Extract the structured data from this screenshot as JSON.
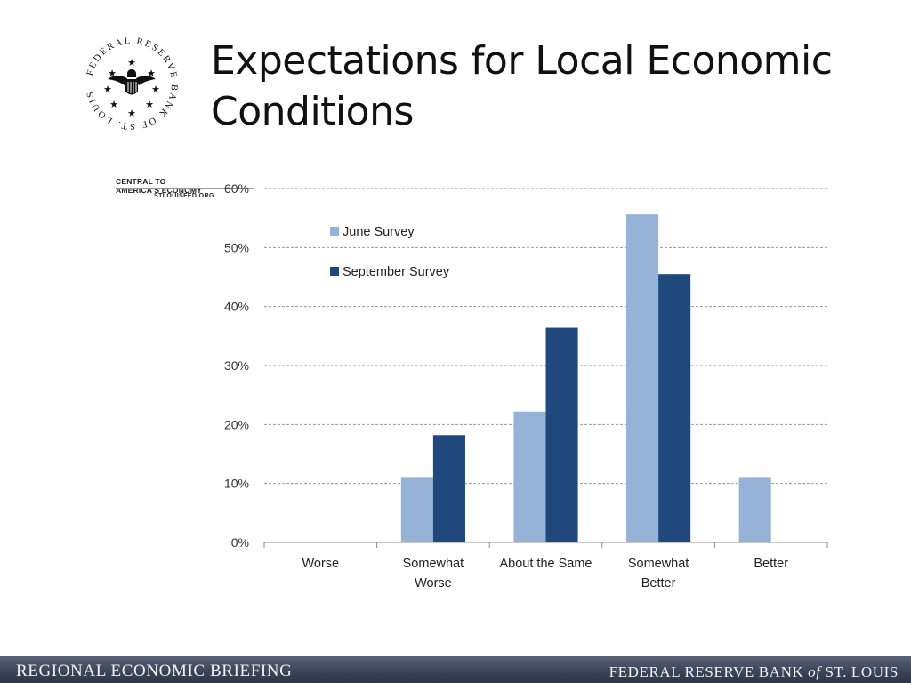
{
  "logo": {
    "ring_text": "FEDERAL RESERVE BANK OF ST. LOUIS",
    "tagline": "CENTRAL TO AMERICA'S ECONOMY",
    "website": "STLOUISFED.ORG"
  },
  "title": "Expectations for Local Economic Conditions",
  "footer": {
    "left": "REGIONAL ECONOMIC BRIEFING",
    "right_prefix": "FEDERAL RESERVE BANK ",
    "right_of": "of",
    "right_suffix": " ST. LOUIS"
  },
  "colors": {
    "june": "#95b3d7",
    "september": "#1f497d",
    "grid": "#999999"
  },
  "chart_data": {
    "type": "bar",
    "title": "",
    "xlabel": "",
    "ylabel": "",
    "categories": [
      "Worse",
      "Somewhat Worse",
      "About the Same",
      "Somewhat Better",
      "Better"
    ],
    "category_lines": [
      [
        "Worse"
      ],
      [
        "Somewhat",
        "Worse"
      ],
      [
        "About the Same"
      ],
      [
        "Somewhat",
        "Better"
      ],
      [
        "Better"
      ]
    ],
    "series": [
      {
        "name": "June Survey",
        "values": [
          0,
          11.1,
          22.2,
          55.6,
          11.1
        ]
      },
      {
        "name": "September Survey",
        "values": [
          0,
          18.2,
          36.4,
          45.5,
          0
        ]
      }
    ],
    "ylim": [
      0,
      60
    ],
    "yticks": [
      0,
      10,
      20,
      30,
      40,
      50,
      60
    ],
    "ytick_labels": [
      "0%",
      "10%",
      "20%",
      "30%",
      "40%",
      "50%",
      "60%"
    ],
    "grid": true,
    "legend_position": "top-left"
  }
}
